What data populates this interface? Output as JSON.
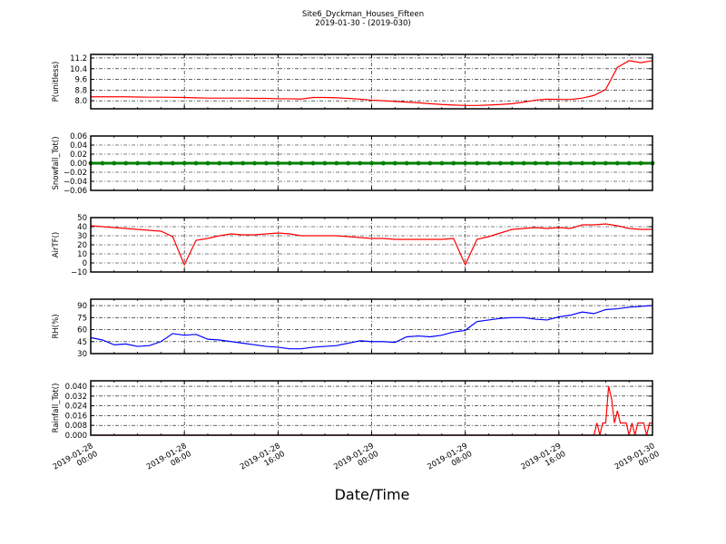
{
  "chart_data": {
    "type": "line",
    "title": "Site6_Dyckman_Houses_Fifteen",
    "subtitle": "2019-01-30 - (2019-030)",
    "xlabel": "Date/Time",
    "xlim": [
      "2019-01-28 00:00",
      "2019-01-30 00:00"
    ],
    "xticks": [
      "2019-01-28\n00:00",
      "2019-01-28\n08:00",
      "2019-01-28\n16:00",
      "2019-01-29\n00:00",
      "2019-01-29\n08:00",
      "2019-01-29\n16:00",
      "2019-01-30\n00:00"
    ],
    "grid": true,
    "times": [
      "2019-01-28 00:00",
      "2019-01-28 01:00",
      "2019-01-28 02:00",
      "2019-01-28 03:00",
      "2019-01-28 04:00",
      "2019-01-28 05:00",
      "2019-01-28 06:00",
      "2019-01-28 07:00",
      "2019-01-28 08:00",
      "2019-01-28 09:00",
      "2019-01-28 10:00",
      "2019-01-28 11:00",
      "2019-01-28 12:00",
      "2019-01-28 13:00",
      "2019-01-28 14:00",
      "2019-01-28 15:00",
      "2019-01-28 16:00",
      "2019-01-28 17:00",
      "2019-01-28 18:00",
      "2019-01-28 19:00",
      "2019-01-28 20:00",
      "2019-01-28 21:00",
      "2019-01-28 22:00",
      "2019-01-28 23:00",
      "2019-01-29 00:00",
      "2019-01-29 01:00",
      "2019-01-29 02:00",
      "2019-01-29 03:00",
      "2019-01-29 04:00",
      "2019-01-29 05:00",
      "2019-01-29 06:00",
      "2019-01-29 07:00",
      "2019-01-29 08:00",
      "2019-01-29 09:00",
      "2019-01-29 10:00",
      "2019-01-29 11:00",
      "2019-01-29 12:00",
      "2019-01-29 13:00",
      "2019-01-29 14:00",
      "2019-01-29 15:00",
      "2019-01-29 16:00",
      "2019-01-29 17:00",
      "2019-01-29 18:00",
      "2019-01-29 19:00",
      "2019-01-29 20:00",
      "2019-01-29 21:00",
      "2019-01-29 22:00",
      "2019-01-29 23:00",
      "2019-01-30 00:00"
    ],
    "subplots": [
      {
        "ylabel": "P(unitless)",
        "ylim": [
          7.4,
          11.47
        ],
        "yticks": [
          "8.0",
          "8.8",
          "9.6",
          "10.4",
          "11.2"
        ],
        "color": "#ff0000",
        "style": "line",
        "values": [
          8.3,
          8.3,
          8.3,
          8.3,
          8.28,
          8.27,
          8.27,
          8.26,
          8.25,
          8.22,
          8.2,
          8.2,
          8.2,
          8.2,
          8.18,
          8.18,
          8.15,
          8.15,
          8.13,
          8.25,
          8.25,
          8.22,
          8.18,
          8.12,
          8.05,
          8.0,
          7.95,
          7.9,
          7.85,
          7.78,
          7.72,
          7.68,
          7.65,
          7.65,
          7.68,
          7.72,
          7.78,
          7.9,
          8.05,
          8.12,
          8.1,
          8.1,
          8.2,
          8.4,
          8.85,
          10.5,
          11.0,
          10.85,
          11.0
        ]
      },
      {
        "ylabel": "Snowfall_Tot()",
        "ylim": [
          -0.06,
          0.06
        ],
        "yticks": [
          "−0.06",
          "−0.04",
          "−0.02",
          "0.00",
          "0.02",
          "0.04",
          "0.06"
        ],
        "color": "#008000",
        "style": "markers",
        "values": [
          0,
          0,
          0,
          0,
          0,
          0,
          0,
          0,
          0,
          0,
          0,
          0,
          0,
          0,
          0,
          0,
          0,
          0,
          0,
          0,
          0,
          0,
          0,
          0,
          0,
          0,
          0,
          0,
          0,
          0,
          0,
          0,
          0,
          0,
          0,
          0,
          0,
          0,
          0,
          0,
          0,
          0,
          0,
          0,
          0,
          0,
          0,
          0,
          0
        ]
      },
      {
        "ylabel": "AirTF()",
        "ylim": [
          -10,
          50
        ],
        "yticks": [
          "−10",
          "0",
          "10",
          "20",
          "30",
          "40",
          "50"
        ],
        "color": "#ff0000",
        "style": "line",
        "values": [
          41,
          40,
          39,
          38,
          37,
          36,
          35,
          29,
          -2,
          25,
          27,
          30,
          32,
          31,
          31,
          32,
          33,
          32,
          30,
          30,
          30,
          30,
          29,
          28,
          27,
          27,
          26,
          26,
          26,
          26,
          26,
          27,
          -2,
          26,
          29,
          33,
          37,
          38,
          39,
          38,
          39,
          38,
          42,
          42,
          43,
          41,
          38,
          37,
          37
        ]
      },
      {
        "ylabel": "RH(%)",
        "ylim": [
          30,
          98
        ],
        "yticks": [
          "30",
          "45",
          "60",
          "75",
          "90"
        ],
        "color": "#0000ff",
        "style": "line",
        "values": [
          50,
          47,
          41,
          42,
          39,
          40,
          45,
          55,
          53,
          54,
          48,
          47,
          45,
          43,
          41,
          39,
          38,
          36,
          36,
          38,
          39,
          40,
          43,
          46,
          45,
          45,
          44,
          51,
          52,
          51,
          53,
          57,
          59,
          70,
          72,
          74,
          75,
          75,
          73,
          72,
          76,
          78,
          82,
          80,
          85,
          86,
          88,
          89,
          90
        ]
      },
      {
        "ylabel": "Rainfall_Tot()",
        "ylim": [
          0,
          0.0445
        ],
        "yticks": [
          "0.000",
          "0.008",
          "0.016",
          "0.024",
          "0.032",
          "0.040"
        ],
        "color": "#ff0000",
        "style": "line",
        "points": [
          [
            "2019-01-28 00:00",
            0
          ],
          [
            "2019-01-29 19:00",
            0
          ],
          [
            "2019-01-29 19:15",
            0.01
          ],
          [
            "2019-01-29 19:30",
            0
          ],
          [
            "2019-01-29 19:45",
            0.01
          ],
          [
            "2019-01-29 20:00",
            0.01
          ],
          [
            "2019-01-29 20:15",
            0.04
          ],
          [
            "2019-01-29 20:30",
            0.03
          ],
          [
            "2019-01-29 20:45",
            0.01
          ],
          [
            "2019-01-29 21:00",
            0.02
          ],
          [
            "2019-01-29 21:15",
            0.01
          ],
          [
            "2019-01-29 21:30",
            0.01
          ],
          [
            "2019-01-29 21:45",
            0.01
          ],
          [
            "2019-01-29 22:00",
            0
          ],
          [
            "2019-01-29 22:15",
            0.01
          ],
          [
            "2019-01-29 22:30",
            0
          ],
          [
            "2019-01-29 22:45",
            0.01
          ],
          [
            "2019-01-29 23:00",
            0.01
          ],
          [
            "2019-01-29 23:15",
            0.01
          ],
          [
            "2019-01-29 23:30",
            0
          ],
          [
            "2019-01-29 23:45",
            0.01
          ],
          [
            "2019-01-30 00:00",
            0.01
          ]
        ]
      }
    ]
  }
}
